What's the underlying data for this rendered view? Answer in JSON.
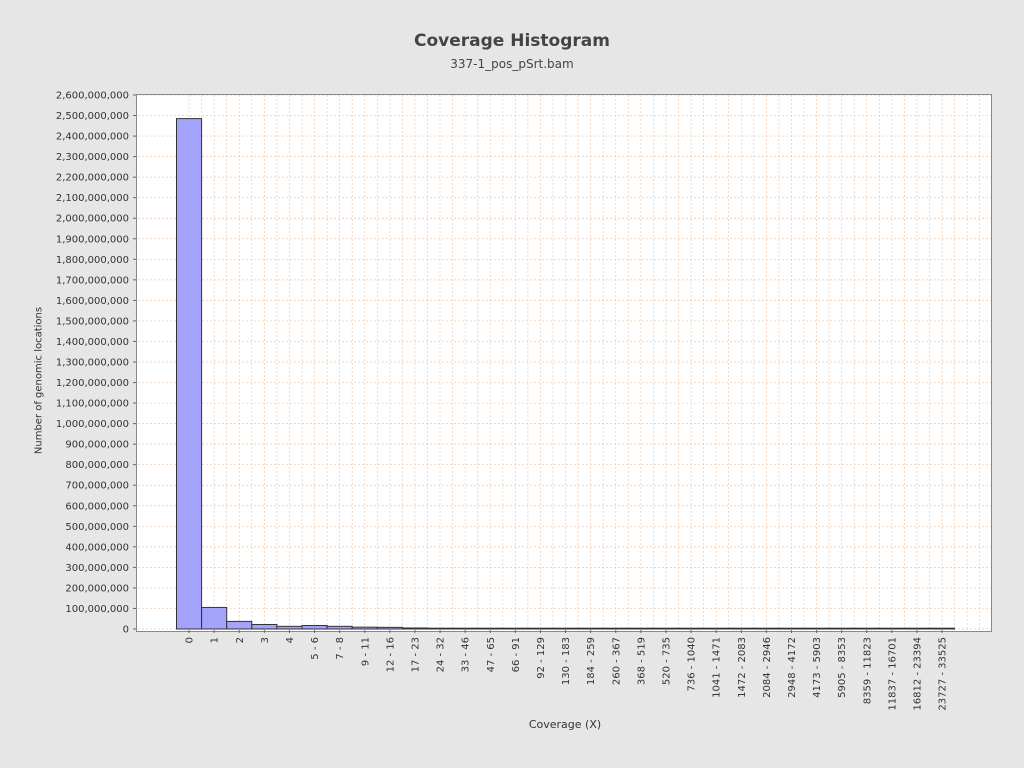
{
  "chart_data": {
    "type": "bar",
    "title": "Coverage Histogram",
    "subtitle": "337-1_pos_pSrt.bam",
    "xlabel": "Coverage (X)",
    "ylabel": "Number of genomic locations",
    "ylim": [
      0,
      2600000000
    ],
    "ytick_step": 100000000,
    "grid": true,
    "categories": [
      "0",
      "1",
      "2",
      "3",
      "4",
      "5 - 6",
      "7 - 8",
      "9 - 11",
      "12 - 16",
      "17 - 23",
      "24 - 32",
      "33 - 46",
      "47 - 65",
      "66 - 91",
      "92 - 129",
      "130 - 183",
      "184 - 259",
      "260 - 367",
      "368 - 519",
      "520 - 735",
      "736 - 1040",
      "1041 - 1471",
      "1472 - 2083",
      "2084 - 2946",
      "2948 - 4172",
      "4173 - 5903",
      "5905 - 8353",
      "8359 - 11823",
      "11837 - 16701",
      "16812 - 23394",
      "23727 - 33525"
    ],
    "values": [
      2485000000,
      105000000,
      37000000,
      22000000,
      13000000,
      17000000,
      13000000,
      9000000,
      8000000,
      5000000,
      4000000,
      3000000,
      1500000,
      800000,
      400000,
      200000,
      100000,
      60000,
      30000,
      15000,
      8000,
      4000,
      2000,
      1000,
      600,
      300,
      150,
      80,
      40,
      20,
      10
    ]
  },
  "colors": {
    "bar_fill": "#a3a3fb",
    "bar_stroke": "#333333",
    "plot_bg": "#ffffff",
    "grid": "#f0c8a8",
    "page_bg": "#e6e6e6"
  }
}
